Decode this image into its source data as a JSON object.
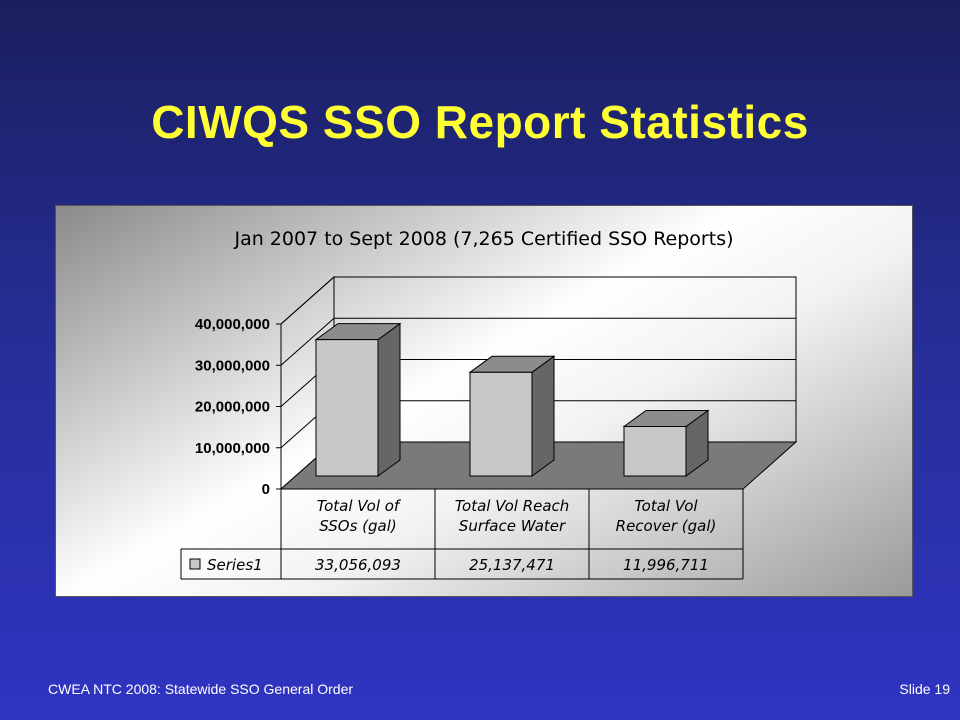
{
  "slide": {
    "title": "CIWQS SSO Report Statistics",
    "footer_left": "CWEA NTC 2008:  Statewide SSO General Order",
    "footer_right": "Slide 19"
  },
  "colors": {
    "background": "#262d94",
    "title": "#ffff33",
    "bar_front": "#c8c8c8",
    "bar_side": "#666666",
    "bar_top": "#8c8c8c",
    "floor": "#7a7a7a"
  },
  "chart_data": {
    "type": "bar",
    "title": "Jan 2007 to Sept 2008 (7,265 Certified SSO Reports)",
    "categories": [
      [
        "Total Vol of",
        "SSOs (gal)"
      ],
      [
        "Total Vol Reach",
        "Surface Water"
      ],
      [
        "Total Vol",
        "Recover (gal)"
      ]
    ],
    "series": [
      {
        "name": "Series1",
        "values": [
          33056093,
          25137471,
          11996711
        ],
        "labels": [
          "33,056,093",
          "25,137,471",
          "11,996,711"
        ]
      }
    ],
    "yticks": [
      "0",
      "10,000,000",
      "20,000,000",
      "30,000,000",
      "40,000,000"
    ],
    "ylim": [
      0,
      40000000
    ],
    "style": "3d",
    "data_table": true,
    "grid": true
  }
}
